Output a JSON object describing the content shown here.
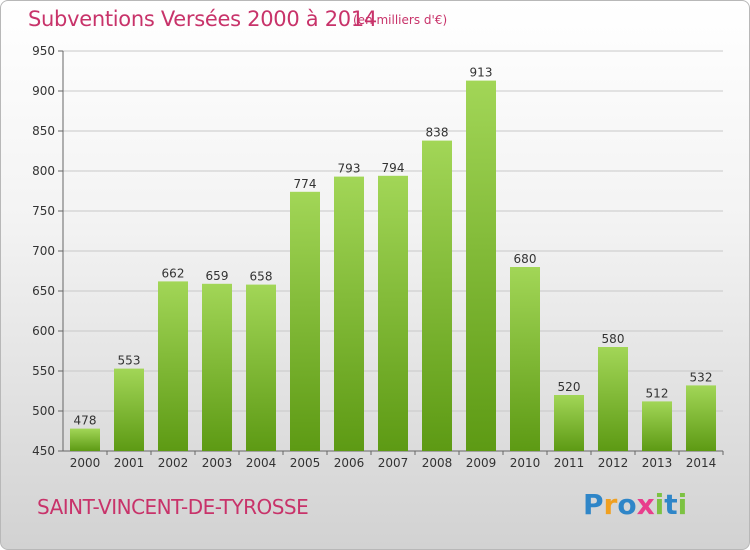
{
  "title": "Subventions Versées 2000 à 2014",
  "subtitle": "(en milliers d'€)",
  "commune": "SAINT-VINCENT-DE-TYROSSE",
  "logo": {
    "text": "Proxiti",
    "letters": [
      {
        "ch": "P",
        "color": "#2f86c8"
      },
      {
        "ch": "r",
        "color": "#f0a020"
      },
      {
        "ch": "o",
        "color": "#2f86c8"
      },
      {
        "ch": "x",
        "color": "#e83e8c"
      },
      {
        "ch": "i",
        "color": "#7cc242"
      },
      {
        "ch": "t",
        "color": "#2f86c8"
      },
      {
        "ch": "i",
        "color": "#7cc242"
      }
    ]
  },
  "colors": {
    "bar_top": "#a2d657",
    "bar_bottom": "#5d9a14",
    "grid": "#c9c9c9",
    "text_accent": "#c8336a"
  },
  "chart_data": {
    "type": "bar",
    "categories": [
      "2000",
      "2001",
      "2002",
      "2003",
      "2004",
      "2005",
      "2006",
      "2007",
      "2008",
      "2009",
      "2010",
      "2011",
      "2012",
      "2013",
      "2014"
    ],
    "values": [
      478,
      553,
      662,
      659,
      658,
      774,
      793,
      794,
      838,
      913,
      680,
      520,
      580,
      512,
      532
    ],
    "ylim": [
      450,
      950
    ],
    "yticks": [
      450,
      500,
      550,
      600,
      650,
      700,
      750,
      800,
      850,
      900,
      950
    ],
    "grid": true,
    "xlabel": "",
    "ylabel": ""
  }
}
